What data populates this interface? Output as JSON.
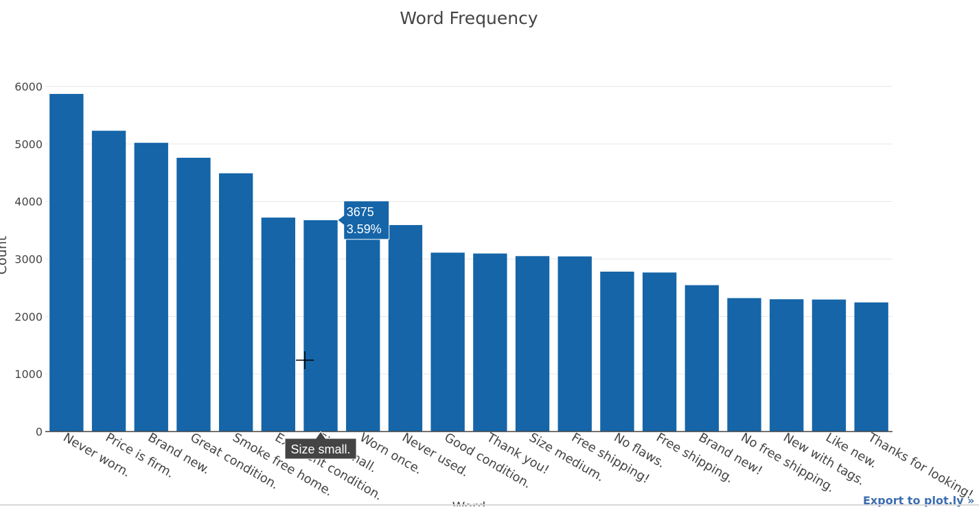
{
  "chart_data": {
    "type": "bar",
    "title": "Word Frequency",
    "xlabel": "Word",
    "ylabel": "Count",
    "ylim": [
      0,
      6000
    ],
    "y_ticks": [
      0,
      1000,
      2000,
      3000,
      4000,
      5000,
      6000
    ],
    "grid": true,
    "bar_color": "#1565a8",
    "categories": [
      "Never worn.",
      "Price is firm.",
      "Brand new.",
      "Great condition.",
      "Smoke free home.",
      "Excellent condition.",
      "Size small.",
      "Worn once.",
      "Never used.",
      "Good condition.",
      "Thank you!",
      "Size medium.",
      "Free shipping!",
      "No flaws.",
      "Free shipping.",
      "Brand new!",
      "No free shipping.",
      "New with tags.",
      "Like new.",
      "Thanks for looking!"
    ],
    "values": [
      5870,
      5230,
      5020,
      4760,
      4490,
      3720,
      3675,
      3640,
      3590,
      3110,
      3095,
      3050,
      3045,
      2780,
      2765,
      2545,
      2320,
      2300,
      2295,
      2245
    ],
    "hover": {
      "category": "Size small.",
      "value": "3675",
      "percent": "3.59%",
      "label": "Size small."
    }
  },
  "export_link": {
    "label": "Export to plot.ly »"
  }
}
